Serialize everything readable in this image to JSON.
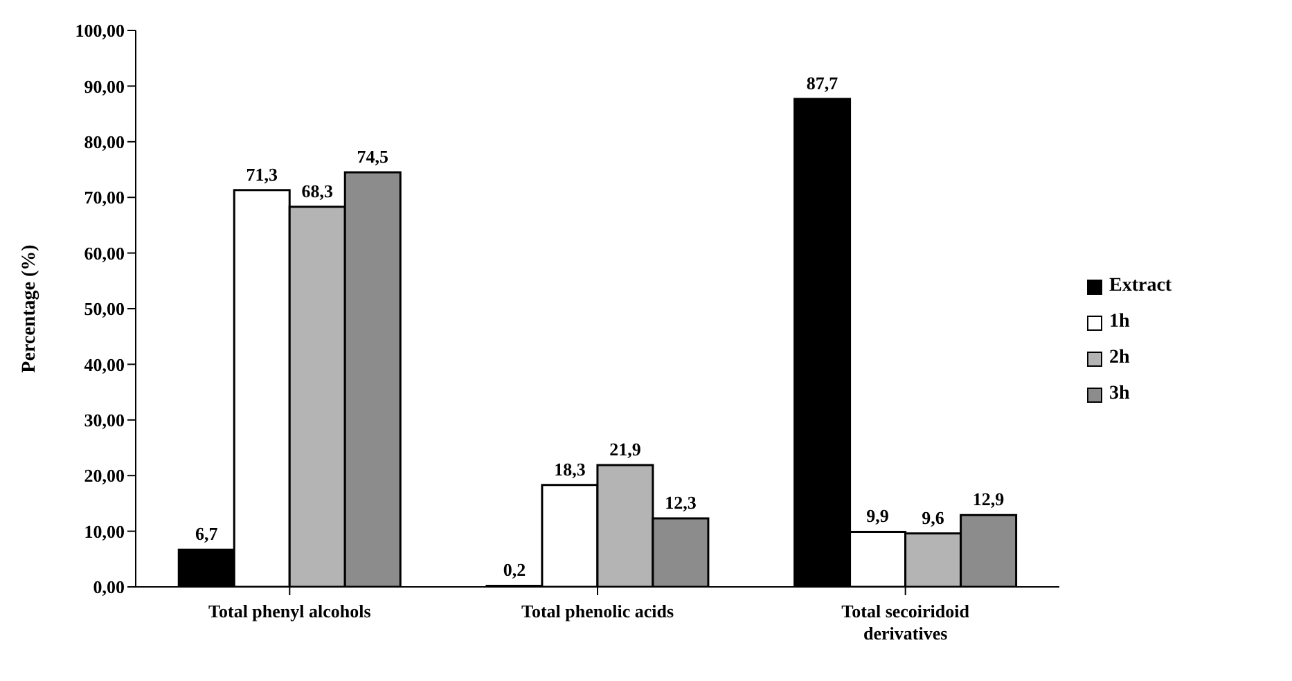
{
  "chart_data": {
    "type": "bar",
    "ylabel": "Percentage (%)",
    "categories": [
      "Total phenyl alcohols",
      "Total phenolic acids",
      "Total secoiridoid derivatives"
    ],
    "series": [
      {
        "name": "Extract",
        "color": "#000000",
        "values": [
          6.7,
          0.2,
          87.7
        ],
        "value_labels": [
          "6,7",
          "0,2",
          "87,7"
        ]
      },
      {
        "name": "1h",
        "color": "#ffffff",
        "values": [
          71.3,
          18.3,
          9.9
        ],
        "value_labels": [
          "71,3",
          "18,3",
          "9,9"
        ]
      },
      {
        "name": "2h",
        "color": "#b4b4b4",
        "values": [
          68.3,
          21.9,
          9.6
        ],
        "value_labels": [
          "68,3",
          "21,9",
          "9,6"
        ]
      },
      {
        "name": "3h",
        "color": "#8c8c8c",
        "values": [
          74.5,
          12.3,
          12.9
        ],
        "value_labels": [
          "74,5",
          "12,3",
          "12,9"
        ]
      }
    ],
    "ylim": [
      0,
      100
    ],
    "yticks": [
      {
        "value": 0,
        "label": "0,00"
      },
      {
        "value": 10,
        "label": "10,00"
      },
      {
        "value": 20,
        "label": "20,00"
      },
      {
        "value": 30,
        "label": "30,00"
      },
      {
        "value": 40,
        "label": "40,00"
      },
      {
        "value": 50,
        "label": "50,00"
      },
      {
        "value": 60,
        "label": "60,00"
      },
      {
        "value": 70,
        "label": "70,00"
      },
      {
        "value": 80,
        "label": "80,00"
      },
      {
        "value": 90,
        "label": "90,00"
      },
      {
        "value": 100,
        "label": "100,00"
      }
    ],
    "grid": false,
    "legend": "right"
  }
}
